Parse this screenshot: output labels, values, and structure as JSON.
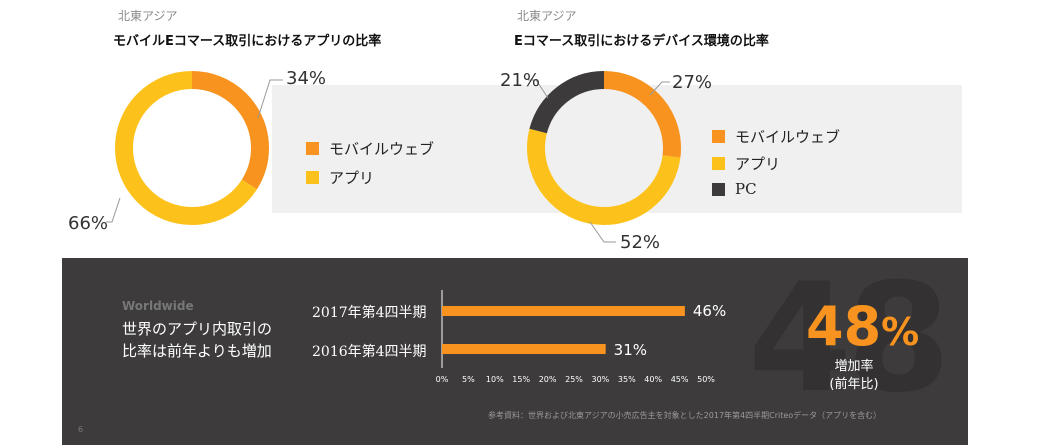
{
  "colors": {
    "mobile_web": "#f7931e",
    "app": "#fcc21b",
    "pc": "#3c3a3b",
    "bar": "#f7931e",
    "accent": "#f7931e"
  },
  "chart_data": [
    {
      "type": "pie",
      "region": "北東アジア",
      "title": "モバイルEコマース取引におけるアプリの比率",
      "slices": [
        {
          "label": "モバイルウェブ",
          "value": 34,
          "display": "34%"
        },
        {
          "label": "アプリ",
          "value": 66,
          "display": "66%"
        }
      ],
      "legend": [
        "モバイルウェブ",
        "アプリ"
      ],
      "legend_placement": "right"
    },
    {
      "type": "pie",
      "region": "北東アジア",
      "title": "Eコマース取引におけるデバイス環境の比率",
      "slices": [
        {
          "label": "モバイルウェブ",
          "value": 27,
          "display": "27%"
        },
        {
          "label": "アプリ",
          "value": 52,
          "display": "52%"
        },
        {
          "label": "PC",
          "value": 21,
          "display": "21%"
        }
      ],
      "legend": [
        "モバイルウェブ",
        "アプリ",
        "PC"
      ],
      "legend_placement": "right"
    },
    {
      "type": "bar",
      "orientation": "horizontal",
      "region": "Worldwide",
      "title_lines": [
        "世界のアプリ内取引の",
        "比率は前年よりも増加"
      ],
      "categories": [
        "2017年第4四半期",
        "2016年第4四半期"
      ],
      "values": [
        46,
        31
      ],
      "value_labels": [
        "46%",
        "31%"
      ],
      "xlim": [
        0,
        50
      ],
      "xticks": [
        "0%",
        "5%",
        "10%",
        "15%",
        "20%",
        "25%",
        "30%",
        "35%",
        "40%",
        "45%",
        "50%"
      ],
      "grid": false
    }
  ],
  "growth": {
    "watermark": "48",
    "value": "48",
    "unit": "%",
    "label_lines": [
      "増加率",
      "(前年比)"
    ]
  },
  "source_note": "参考資料：世界および北東アジアの小売広告主を対象とした2017年第4四半期Criteoデータ（アプリを含む）",
  "page_number": "6"
}
